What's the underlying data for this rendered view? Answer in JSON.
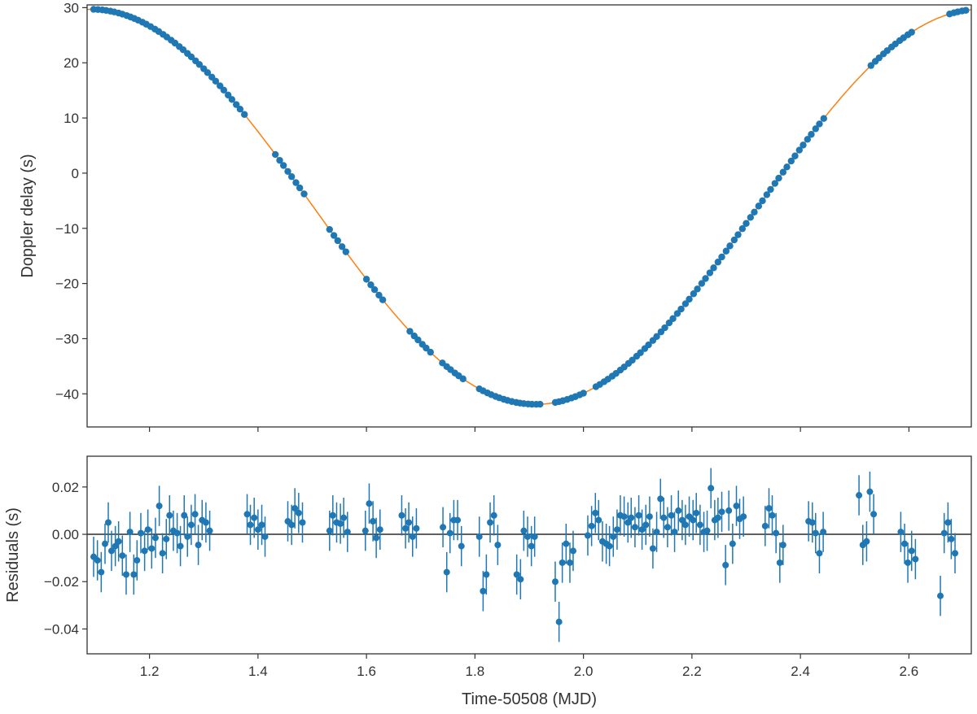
{
  "colors": {
    "points": "#1f77b4",
    "model": "#ff7f0e",
    "zero_line": "#000000",
    "frame": "#333333"
  },
  "chart_data": [
    {
      "panel": "top",
      "type": "scatter",
      "title": "",
      "xlabel": "",
      "ylabel": "Doppler delay (s)",
      "xlim": [
        1.085,
        2.715
      ],
      "ylim": [
        -46,
        30.5
      ],
      "yticks": [
        30,
        20,
        10,
        0,
        -10,
        -20,
        -30,
        -40
      ],
      "ytick_labels": [
        "30",
        "20",
        "10",
        "0",
        "−10",
        "−20",
        "−30",
        "−40"
      ],
      "xticks": [
        1.2,
        1.4,
        1.6,
        1.8,
        2.0,
        2.2,
        2.4,
        2.6
      ],
      "grid": false,
      "legend": "none",
      "model": {
        "name": "",
        "kind": "sinusoid",
        "offset": -6.1,
        "amplitude": 35.8,
        "period_days": 1.64,
        "phase_at_minimum": 1.912,
        "x_range": [
          1.085,
          2.715
        ]
      },
      "x": [
        1.097,
        1.105,
        1.113,
        1.12,
        1.128,
        1.135,
        1.143,
        1.15,
        1.158,
        1.165,
        1.172,
        1.179,
        1.187,
        1.194,
        1.202,
        1.21,
        1.217,
        1.225,
        1.232,
        1.24,
        1.247,
        1.255,
        1.262,
        1.27,
        1.277,
        1.285,
        1.292,
        1.3,
        1.307,
        1.315,
        1.322,
        1.33,
        1.337,
        1.345,
        1.352,
        1.36,
        1.367,
        1.375,
        1.432,
        1.44,
        1.447,
        1.455,
        1.462,
        1.47,
        1.477,
        1.485,
        1.532,
        1.54,
        1.547,
        1.555,
        1.562,
        1.6,
        1.608,
        1.615,
        1.623,
        1.63,
        1.68,
        1.688,
        1.695,
        1.703,
        1.71,
        1.718,
        1.74,
        1.748,
        1.755,
        1.763,
        1.77,
        1.778,
        1.808,
        1.815,
        1.823,
        1.83,
        1.838,
        1.845,
        1.853,
        1.86,
        1.868,
        1.876,
        1.883,
        1.89,
        1.898,
        1.905,
        1.913,
        1.92,
        1.948,
        1.955,
        1.962,
        1.97,
        1.978,
        1.985,
        1.993,
        2.0,
        2.023,
        2.03,
        2.038,
        2.045,
        2.053,
        2.06,
        2.068,
        2.075,
        2.083,
        2.09,
        2.098,
        2.105,
        2.113,
        2.12,
        2.128,
        2.135,
        2.143,
        2.15,
        2.158,
        2.165,
        2.173,
        2.18,
        2.188,
        2.195,
        2.203,
        2.21,
        2.218,
        2.225,
        2.233,
        2.24,
        2.248,
        2.255,
        2.263,
        2.27,
        2.278,
        2.285,
        2.293,
        2.3,
        2.308,
        2.315,
        2.323,
        2.33,
        2.338,
        2.345,
        2.353,
        2.36,
        2.368,
        2.375,
        2.383,
        2.39,
        2.398,
        2.405,
        2.413,
        2.42,
        2.428,
        2.435,
        2.443,
        2.53,
        2.538,
        2.545,
        2.553,
        2.56,
        2.568,
        2.575,
        2.583,
        2.59,
        2.598,
        2.605,
        2.675,
        2.683,
        2.69,
        2.698,
        2.705
      ],
      "y_from_model": true
    },
    {
      "panel": "bottom",
      "type": "scatter",
      "title": "",
      "xlabel": "Time-50508 (MJD)",
      "ylabel": "Residuals (s)",
      "xlim": [
        1.085,
        2.715
      ],
      "ylim": [
        -0.0505,
        0.033
      ],
      "yticks": [
        0.02,
        0.0,
        -0.02,
        -0.04
      ],
      "ytick_labels": [
        "0.02",
        "0.00",
        "−0.02",
        "−0.04"
      ],
      "xticks": [
        1.2,
        1.4,
        1.6,
        1.8,
        2.0,
        2.2,
        2.4,
        2.6
      ],
      "xtick_labels": [
        "1.2",
        "1.4",
        "1.6",
        "1.8",
        "2.0",
        "2.2",
        "2.4",
        "2.6"
      ],
      "zero_line": 0,
      "grid": false,
      "legend": "none",
      "error_bar": 0.0085,
      "points": [
        [
          1.097,
          -0.0095
        ],
        [
          1.104,
          -0.011
        ],
        [
          1.111,
          -0.016
        ],
        [
          1.118,
          -0.004
        ],
        [
          1.124,
          0.005
        ],
        [
          1.13,
          -0.007
        ],
        [
          1.137,
          -0.005
        ],
        [
          1.143,
          -0.003
        ],
        [
          1.15,
          -0.009
        ],
        [
          1.157,
          -0.017
        ],
        [
          1.164,
          0.001
        ],
        [
          1.171,
          -0.017
        ],
        [
          1.177,
          -0.011
        ],
        [
          1.184,
          0.0005
        ],
        [
          1.191,
          -0.007
        ],
        [
          1.197,
          0.002
        ],
        [
          1.204,
          -0.006
        ],
        [
          1.211,
          -0.0015
        ],
        [
          1.218,
          0.012
        ],
        [
          1.224,
          -0.008
        ],
        [
          1.231,
          -0.002
        ],
        [
          1.237,
          0.008
        ],
        [
          1.244,
          0.0015
        ],
        [
          1.251,
          0.0005
        ],
        [
          1.257,
          -0.005
        ],
        [
          1.264,
          0.008
        ],
        [
          1.27,
          -0.001
        ],
        [
          1.277,
          0.004
        ],
        [
          1.284,
          0.0085
        ],
        [
          1.29,
          -0.0045
        ],
        [
          1.297,
          0.006
        ],
        [
          1.304,
          0.005
        ],
        [
          1.311,
          0.0015
        ],
        [
          1.38,
          0.0085
        ],
        [
          1.386,
          0.004
        ],
        [
          1.393,
          0.007
        ],
        [
          1.4,
          0.002
        ],
        [
          1.407,
          0.004
        ],
        [
          1.413,
          -0.001
        ],
        [
          1.455,
          0.0055
        ],
        [
          1.462,
          0.004
        ],
        [
          1.468,
          0.011
        ],
        [
          1.475,
          0.009
        ],
        [
          1.482,
          0.005
        ],
        [
          1.532,
          0.0015
        ],
        [
          1.538,
          0.008
        ],
        [
          1.545,
          0.005
        ],
        [
          1.552,
          0.0045
        ],
        [
          1.558,
          0.007
        ],
        [
          1.565,
          0.001
        ],
        [
          1.598,
          0.0015
        ],
        [
          1.605,
          0.013
        ],
        [
          1.612,
          0.0055
        ],
        [
          1.618,
          -0.0015
        ],
        [
          1.625,
          0.002
        ],
        [
          1.665,
          0.008
        ],
        [
          1.672,
          0.0025
        ],
        [
          1.678,
          0.005
        ],
        [
          1.685,
          -0.001
        ],
        [
          1.692,
          0.0025
        ],
        [
          1.741,
          0.003
        ],
        [
          1.748,
          -0.016
        ],
        [
          1.754,
          0.0005
        ],
        [
          1.761,
          0.006
        ],
        [
          1.768,
          0.006
        ],
        [
          1.775,
          -0.005
        ],
        [
          1.808,
          -0.001
        ],
        [
          1.815,
          -0.024
        ],
        [
          1.821,
          -0.017
        ],
        [
          1.828,
          0.005
        ],
        [
          1.835,
          0.008
        ],
        [
          1.842,
          -0.0045
        ],
        [
          1.877,
          -0.017
        ],
        [
          1.884,
          -0.019
        ],
        [
          1.89,
          0.0015
        ],
        [
          1.897,
          -0.001
        ],
        [
          1.904,
          -0.005
        ],
        [
          1.91,
          -0.001
        ],
        [
          1.948,
          -0.02
        ],
        [
          1.955,
          -0.037
        ],
        [
          1.961,
          -0.012
        ],
        [
          1.968,
          -0.004
        ],
        [
          1.975,
          -0.012
        ],
        [
          1.981,
          -0.007
        ],
        [
          2.008,
          -0.0005
        ],
        [
          2.015,
          0.0035
        ],
        [
          2.022,
          0.009
        ],
        [
          2.028,
          0.006
        ],
        [
          2.035,
          -0.003
        ],
        [
          2.042,
          -0.004
        ],
        [
          2.048,
          -0.005
        ],
        [
          2.055,
          -0.001
        ],
        [
          2.062,
          0.002
        ],
        [
          2.068,
          0.008
        ],
        [
          2.075,
          0.0075
        ],
        [
          2.082,
          0.005
        ],
        [
          2.088,
          0.007
        ],
        [
          2.095,
          0.003
        ],
        [
          2.102,
          0.008
        ],
        [
          2.108,
          0.002
        ],
        [
          2.115,
          0.004
        ],
        [
          2.122,
          0.0075
        ],
        [
          2.128,
          -0.006
        ],
        [
          2.135,
          0.001
        ],
        [
          2.142,
          0.015
        ],
        [
          2.148,
          0.007
        ],
        [
          2.155,
          0.003
        ],
        [
          2.162,
          0.008
        ],
        [
          2.168,
          0.001
        ],
        [
          2.175,
          0.01
        ],
        [
          2.182,
          0.006
        ],
        [
          2.188,
          0.004
        ],
        [
          2.195,
          0.0075
        ],
        [
          2.202,
          0.006
        ],
        [
          2.208,
          0.009
        ],
        [
          2.215,
          0.004
        ],
        [
          2.222,
          0.001
        ],
        [
          2.228,
          0.0015
        ],
        [
          2.235,
          0.0195
        ],
        [
          2.242,
          0.006
        ],
        [
          2.248,
          0.007
        ],
        [
          2.255,
          0.0095
        ],
        [
          2.262,
          -0.013
        ],
        [
          2.268,
          0.01
        ],
        [
          2.275,
          -0.004
        ],
        [
          2.282,
          0.012
        ],
        [
          2.288,
          0.0065
        ],
        [
          2.295,
          0.0075
        ],
        [
          2.335,
          0.0035
        ],
        [
          2.342,
          0.011
        ],
        [
          2.348,
          0.008
        ],
        [
          2.355,
          0.0005
        ],
        [
          2.362,
          -0.012
        ],
        [
          2.368,
          -0.0045
        ],
        [
          2.415,
          0.0055
        ],
        [
          2.422,
          0.005
        ],
        [
          2.428,
          0.0005
        ],
        [
          2.435,
          -0.008
        ],
        [
          2.442,
          0.001
        ],
        [
          2.508,
          0.0165
        ],
        [
          2.515,
          -0.0045
        ],
        [
          2.522,
          -0.003
        ],
        [
          2.528,
          0.018
        ],
        [
          2.535,
          0.0085
        ],
        [
          2.585,
          0.001
        ],
        [
          2.592,
          -0.004
        ],
        [
          2.598,
          -0.012
        ],
        [
          2.605,
          -0.007
        ],
        [
          2.612,
          -0.0105
        ],
        [
          2.658,
          -0.026
        ],
        [
          2.665,
          0.0005
        ],
        [
          2.672,
          0.005
        ],
        [
          2.678,
          -0.002
        ],
        [
          2.685,
          -0.008
        ]
      ]
    }
  ]
}
